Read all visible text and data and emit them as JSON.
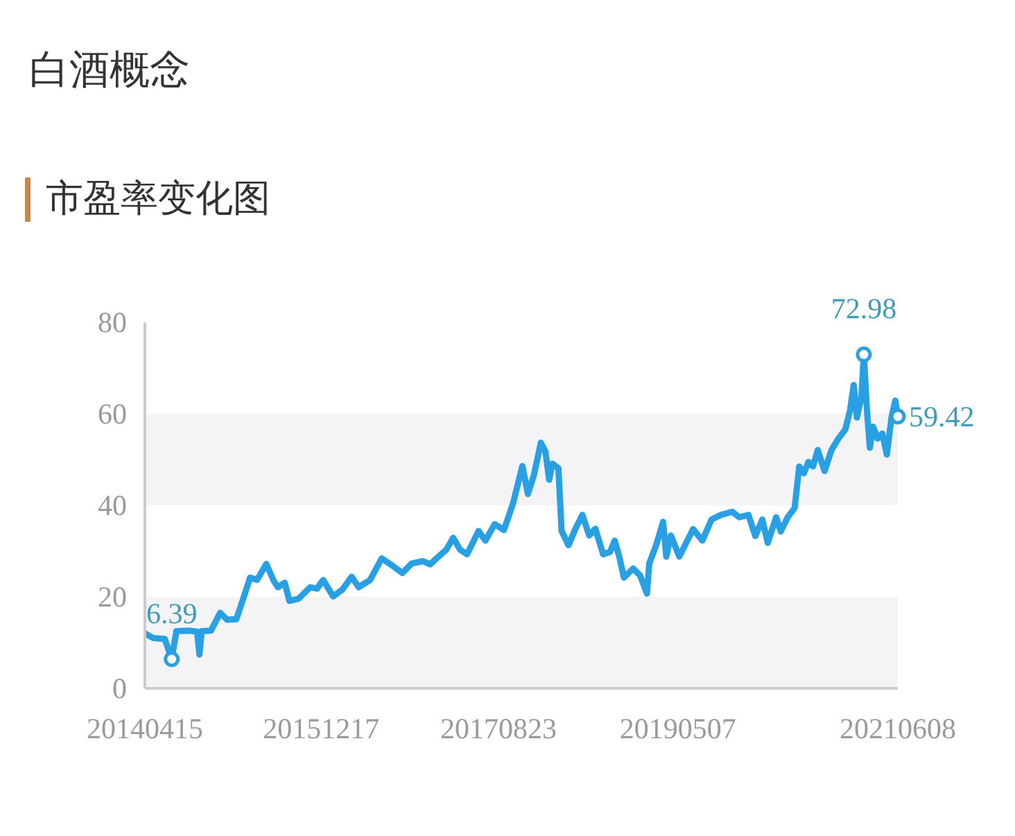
{
  "chart_data": {
    "type": "line",
    "title": "白酒概念",
    "subtitle": "市盈率变化图",
    "x": [
      "2014-04-15",
      "2014-05-14",
      "2014-06-23",
      "2014-07-17",
      "2014-08-02",
      "2014-09-19",
      "2014-10-13",
      "2014-10-21",
      "2014-10-29",
      "2014-11-30",
      "2015-01-01",
      "2015-01-25",
      "2015-02-26",
      "2015-03-22",
      "2015-04-15",
      "2015-05-09",
      "2015-06-10",
      "2015-07-04",
      "2015-07-20",
      "2015-08-13",
      "2015-08-29",
      "2015-09-30",
      "2015-11-09",
      "2015-12-03",
      "2015-12-24",
      "2016-01-28",
      "2016-02-29",
      "2016-04-01",
      "2016-04-25",
      "2016-06-04",
      "2016-07-14",
      "2016-08-23",
      "2016-09-24",
      "2016-10-26",
      "2016-12-05",
      "2016-12-29",
      "2017-01-22",
      "2017-02-23",
      "2017-03-19",
      "2017-04-12",
      "2017-05-06",
      "2017-06-15",
      "2017-07-09",
      "2017-08-10",
      "2017-09-11",
      "2017-10-13",
      "2017-10-29",
      "2017-11-14",
      "2017-12-03",
      "2017-12-24",
      "2018-01-17",
      "2018-02-02",
      "2018-02-15",
      "2018-02-26",
      "2018-03-19",
      "2018-03-30",
      "2018-04-23",
      "2018-05-17",
      "2018-06-10",
      "2018-07-04",
      "2018-07-25",
      "2018-08-21",
      "2018-09-14",
      "2018-09-30",
      "2018-10-16",
      "2018-11-01",
      "2018-12-03",
      "2018-12-27",
      "2019-01-20",
      "2019-01-28",
      "2019-02-21",
      "2019-03-17",
      "2019-03-28",
      "2019-04-13",
      "2019-05-12",
      "2019-06-29",
      "2019-07-31",
      "2019-09-01",
      "2019-10-03",
      "2019-11-12",
      "2019-12-06",
      "2020-01-07",
      "2020-01-31",
      "2020-02-24",
      "2020-03-14",
      "2020-04-12",
      "2020-04-28",
      "2020-05-22",
      "2020-06-15",
      "2020-07-01",
      "2020-07-17",
      "2020-08-02",
      "2020-08-18",
      "2020-09-03",
      "2020-09-27",
      "2020-10-21",
      "2020-11-14",
      "2020-12-08",
      "2020-12-24",
      "2021-01-06",
      "2021-01-17",
      "2021-02-02",
      "2021-02-10",
      "2021-02-21",
      "2021-03-03",
      "2021-03-14",
      "2021-03-30",
      "2021-04-15",
      "2021-05-01",
      "2021-05-17",
      "2021-05-30",
      "2021-06-08"
    ],
    "series": [
      {
        "color": "#2aa0e4",
        "values": [
          12.0,
          11.0,
          10.8,
          6.39,
          12.5,
          12.6,
          12.4,
          7.4,
          12.5,
          12.6,
          16.5,
          15.0,
          15.1,
          19.6,
          24.2,
          23.7,
          27.2,
          23.7,
          22.1,
          23.1,
          19.1,
          19.6,
          22.1,
          21.8,
          23.7,
          20.1,
          21.6,
          24.4,
          22.1,
          23.7,
          28.4,
          26.7,
          25.2,
          27.3,
          27.8,
          27.1,
          28.5,
          30.3,
          32.9,
          30.3,
          29.3,
          34.4,
          32.3,
          35.9,
          34.6,
          40.5,
          44.6,
          48.6,
          42.5,
          46.6,
          53.7,
          51.7,
          45.6,
          49.1,
          48.1,
          34.4,
          31.3,
          34.9,
          37.9,
          33.4,
          34.9,
          29.3,
          29.8,
          32.3,
          28.8,
          24.2,
          26.2,
          24.7,
          20.7,
          27.3,
          31.3,
          36.4,
          28.8,
          33.4,
          28.8,
          34.8,
          32.3,
          36.9,
          37.9,
          38.6,
          37.4,
          37.9,
          33.3,
          36.9,
          31.8,
          37.4,
          34.3,
          37.4,
          39.4,
          48.5,
          47.0,
          49.5,
          48.5,
          52.1,
          47.5,
          52.1,
          54.6,
          56.6,
          60.7,
          66.3,
          59.2,
          63.8,
          72.98,
          60.7,
          52.6,
          57.2,
          54.6,
          55.7,
          51.1,
          59.2,
          62.9,
          59.42
        ]
      }
    ],
    "xlim": [
      "2014-04-15",
      "2021-06-08"
    ],
    "xticks": [
      {
        "value": "2014-04-15",
        "label": "20140415"
      },
      {
        "value": "2015-12-17",
        "label": "20151217"
      },
      {
        "value": "2017-08-23",
        "label": "20170823"
      },
      {
        "value": "2019-05-07",
        "label": "20190507"
      },
      {
        "value": "2021-06-08",
        "label": "20210608"
      }
    ],
    "ylim": [
      0,
      80
    ],
    "yticks": [
      0,
      20,
      40,
      60,
      80
    ],
    "grid": false,
    "line_style": "solid",
    "bands": [
      {
        "axis": "y",
        "from": 0,
        "to": 20,
        "color": "#f4f4f6",
        "label": null
      },
      {
        "axis": "y",
        "from": 40,
        "to": 60,
        "color": "#f4f4f6",
        "label": null
      }
    ],
    "annotations": [
      {
        "text": "6.39",
        "x": "2014-07-17",
        "y": 6.39
      },
      {
        "text": "72.98",
        "x": "2021-02-10",
        "y": 72.98
      },
      {
        "text": "59.42",
        "x": "2021-06-08",
        "y": 59.42
      }
    ]
  }
}
